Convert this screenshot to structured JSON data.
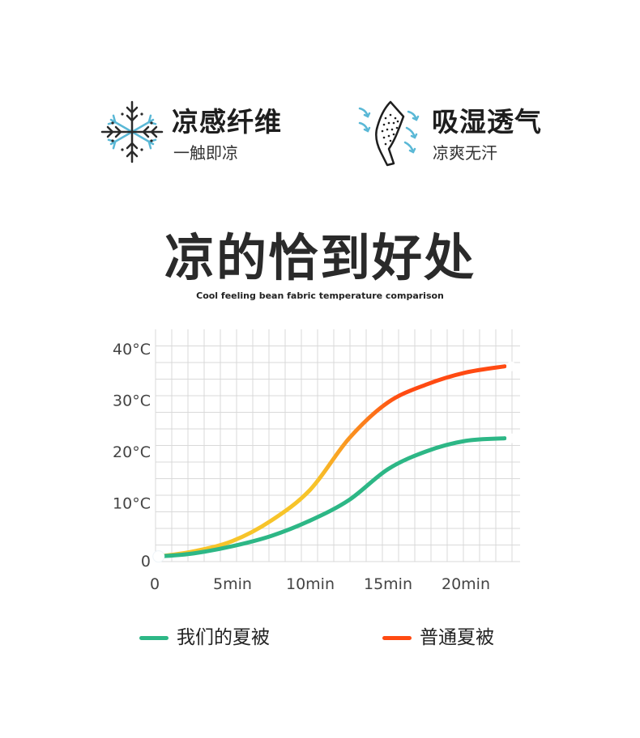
{
  "features": [
    {
      "title": "凉感纤维",
      "subtitle": "一触即凉",
      "icon": "snowflake-icon"
    },
    {
      "title": "吸湿透气",
      "subtitle": "凉爽无汗",
      "icon": "breathable-fabric-icon"
    }
  ],
  "title": "凉的恰到好处",
  "subtitle": "Cool feeling bean fabric temperature comparison",
  "colors": {
    "ours": "#2db786",
    "ordinary_start": "#f7c42a",
    "ordinary_end": "#ff4a12",
    "grid": "#d9d9d9",
    "icon_blue": "#5ab8d6"
  },
  "chart_data": {
    "type": "line",
    "title": "",
    "xlabel": "",
    "ylabel": "",
    "x_ticks": [
      "0",
      "5min",
      "10min",
      "15min",
      "20min"
    ],
    "y_ticks": [
      "0",
      "10°C",
      "20°C",
      "30°C",
      "40°C"
    ],
    "xlim": [
      0,
      23.5
    ],
    "ylim": [
      0,
      40
    ],
    "grid": true,
    "legend": "bottom",
    "series": [
      {
        "name": "我们的夏被",
        "x": [
          0.3,
          2.5,
          5,
          7.5,
          10,
          12.5,
          15,
          17.5,
          20,
          22.5
        ],
        "y": [
          1,
          1.6,
          3,
          5,
          8,
          12,
          18,
          21.5,
          23.5,
          24
        ]
      },
      {
        "name": "普通夏被",
        "x": [
          0.3,
          2.5,
          5,
          7.5,
          10,
          12.5,
          15,
          17.5,
          20,
          22.5
        ],
        "y": [
          1,
          2,
          4,
          8,
          14,
          24,
          31,
          34.5,
          36.8,
          38
        ]
      }
    ]
  }
}
